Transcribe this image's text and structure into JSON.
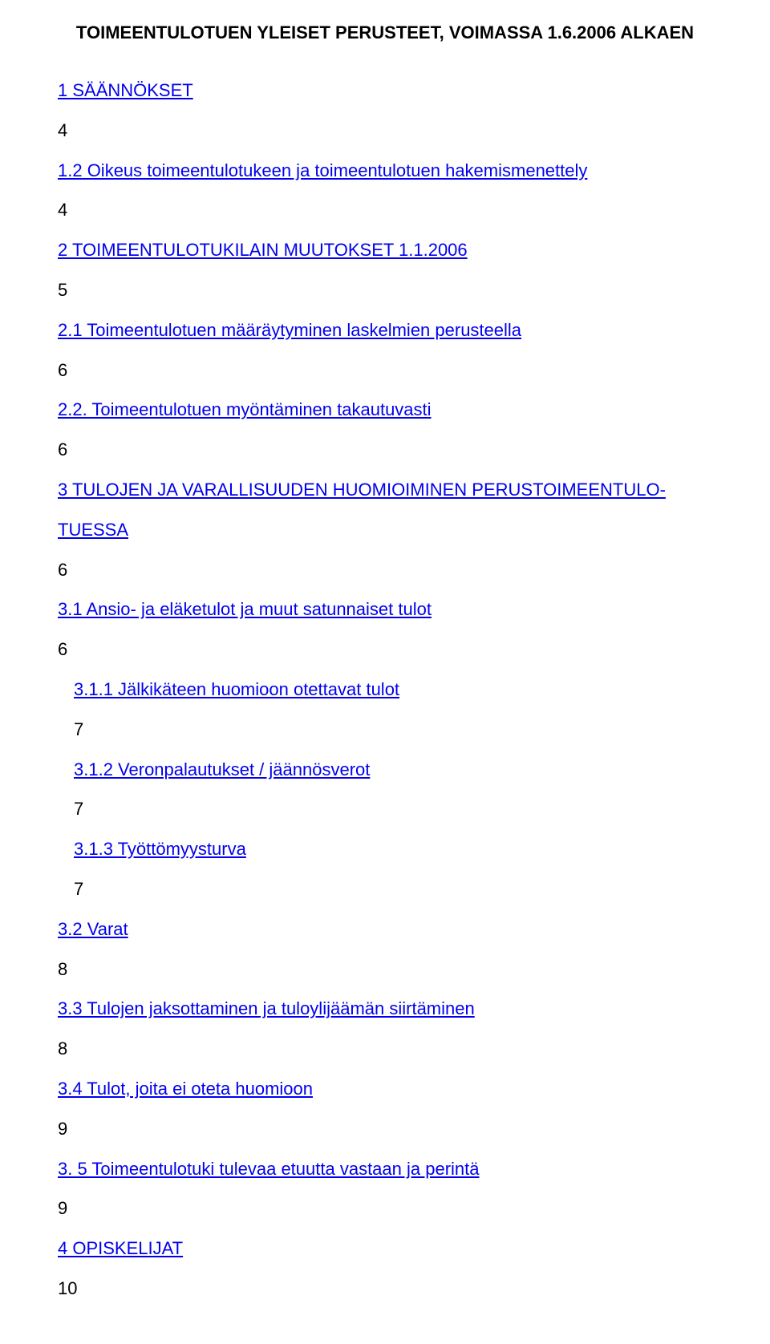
{
  "title": "TOIMEENTULOTUEN YLEISET PERUSTEET, VOIMASSA 1.6.2006 ALKAEN",
  "toc": [
    {
      "label": "1 SÄÄNNÖKSET",
      "page": "4",
      "indent": 0
    },
    {
      "label": "1.2  Oikeus toimeentulotukeen ja toimeentulotuen hakemismenettely",
      "page": "4",
      "indent": 0
    },
    {
      "label": "2 TOIMEENTULOTUKILAIN MUUTOKSET 1.1.2006",
      "page": "5",
      "indent": 0
    },
    {
      "label": "2.1  Toimeentulotuen määräytyminen laskelmien perusteella",
      "page": "6",
      "indent": 0
    },
    {
      "label": "2.2. Toimeentulotuen myöntäminen takautuvasti",
      "page": "6",
      "indent": 0
    },
    {
      "label_a": "3 TULOJEN JA VARALLISUUDEN HUOMIOIMINEN PERUSTOIMEENTULO-",
      "label_b": "TUESSA",
      "page": "6",
      "indent": 0,
      "multi": true
    },
    {
      "label": "3.1 Ansio- ja eläketulot ja muut satunnaiset tulot",
      "page": "6",
      "indent": 0
    },
    {
      "label": "3.1.1 Jälkikäteen huomioon otettavat tulot",
      "page": "7",
      "indent": 1
    },
    {
      "label": "3.1.2 Veronpalautukset / jäännösverot",
      "page": "7",
      "indent": 1
    },
    {
      "label": "3.1.3 Työttömyysturva",
      "page": "7",
      "indent": 1
    },
    {
      "label": "3.2 Varat",
      "page": "8",
      "indent": 0
    },
    {
      "label": "3.3  Tulojen jaksottaminen ja tuloylijäämän siirtäminen",
      "page": "8",
      "indent": 0
    },
    {
      "label": "3.4 Tulot, joita ei oteta huomioon",
      "page": "9",
      "indent": 0
    },
    {
      "label": "3. 5  Toimeentulotuki tulevaa etuutta vastaan ja perintä",
      "page": "9",
      "indent": 0
    },
    {
      "label": "4 OPISKELIJAT",
      "page": "10",
      "indent": 0
    }
  ]
}
